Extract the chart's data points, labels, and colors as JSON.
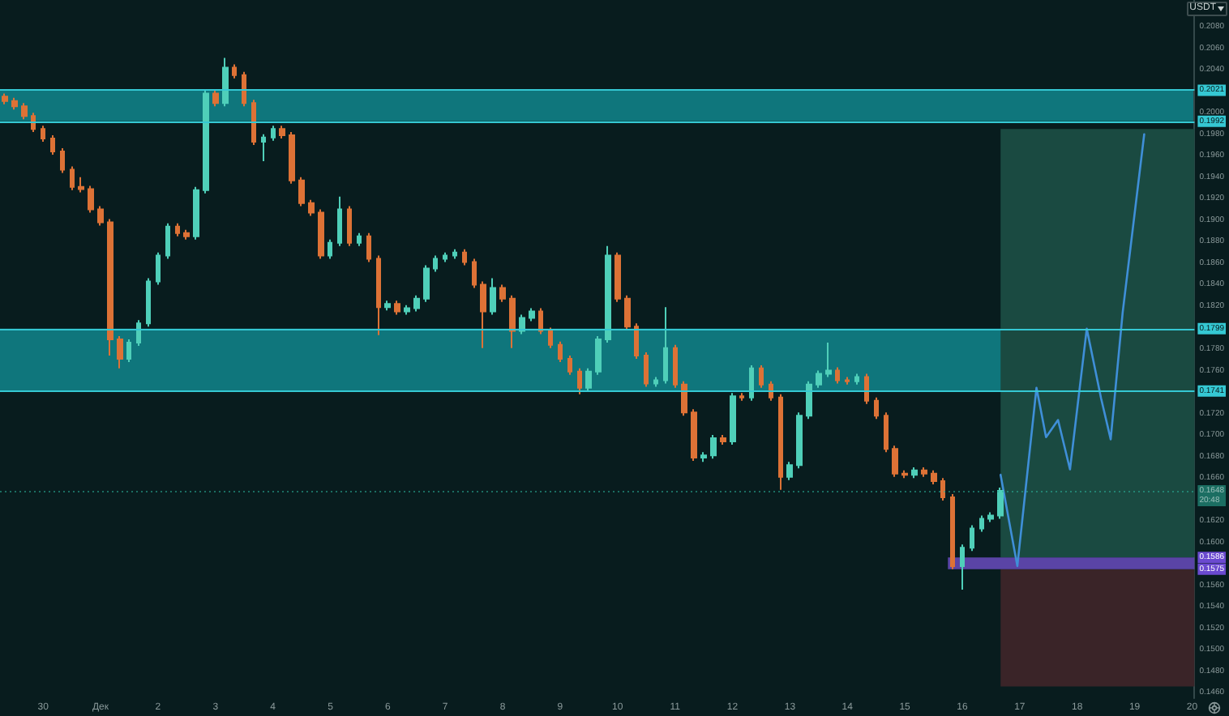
{
  "chart_data": {
    "type": "candlestick",
    "ylabel": "USDT",
    "xlim": [
      "--11-29T06:00",
      "--12-20T01:00"
    ],
    "xticks": [
      {
        "value": "--11-30",
        "label": "30"
      },
      {
        "value": "--12-01",
        "label": "Дек"
      },
      {
        "value": "--12-02",
        "label": "2"
      },
      {
        "value": "--12-03",
        "label": "3"
      },
      {
        "value": "--12-04",
        "label": "4"
      },
      {
        "value": "--12-05",
        "label": "5"
      },
      {
        "value": "--12-06",
        "label": "6"
      },
      {
        "value": "--12-07",
        "label": "7"
      },
      {
        "value": "--12-08",
        "label": "8"
      },
      {
        "value": "--12-09",
        "label": "9"
      },
      {
        "value": "--12-10",
        "label": "10"
      },
      {
        "value": "--12-11",
        "label": "11"
      },
      {
        "value": "--12-12",
        "label": "12"
      },
      {
        "value": "--12-13",
        "label": "13"
      },
      {
        "value": "--12-14",
        "label": "14"
      },
      {
        "value": "--12-15",
        "label": "15"
      },
      {
        "value": "--12-16",
        "label": "16"
      },
      {
        "value": "--12-17",
        "label": "17"
      },
      {
        "value": "--12-18",
        "label": "18"
      },
      {
        "value": "--12-19",
        "label": "19"
      },
      {
        "value": "--12-20",
        "label": "20"
      }
    ],
    "ylim": [
      0.1455,
      0.2105
    ],
    "yticks": [
      {
        "value": 0.208,
        "label": "0.2080"
      },
      {
        "value": 0.206,
        "label": "0.2060"
      },
      {
        "value": 0.204,
        "label": "0.2040"
      },
      {
        "value": 0.2,
        "label": "0.2000"
      },
      {
        "value": 0.198,
        "label": "0.1980"
      },
      {
        "value": 0.196,
        "label": "0.1960"
      },
      {
        "value": 0.194,
        "label": "0.1940"
      },
      {
        "value": 0.192,
        "label": "0.1920"
      },
      {
        "value": 0.19,
        "label": "0.1900"
      },
      {
        "value": 0.188,
        "label": "0.1880"
      },
      {
        "value": 0.186,
        "label": "0.1860"
      },
      {
        "value": 0.184,
        "label": "0.1840"
      },
      {
        "value": 0.182,
        "label": "0.1820"
      },
      {
        "value": 0.178,
        "label": "0.1780"
      },
      {
        "value": 0.176,
        "label": "0.1760"
      },
      {
        "value": 0.172,
        "label": "0.1720"
      },
      {
        "value": 0.17,
        "label": "0.1700"
      },
      {
        "value": 0.168,
        "label": "0.1680"
      },
      {
        "value": 0.166,
        "label": "0.1660"
      },
      {
        "value": 0.162,
        "label": "0.1620"
      },
      {
        "value": 0.16,
        "label": "0.1600"
      },
      {
        "value": 0.156,
        "label": "0.1560"
      },
      {
        "value": 0.154,
        "label": "0.1540"
      },
      {
        "value": 0.152,
        "label": "0.1520"
      },
      {
        "value": 0.15,
        "label": "0.1500"
      },
      {
        "value": 0.148,
        "label": "0.1480"
      },
      {
        "value": 0.146,
        "label": "0.1460"
      }
    ],
    "bands": [
      {
        "axis": "y",
        "from": 0.1992,
        "to": 0.2021,
        "color": "#0f767c"
      },
      {
        "axis": "y",
        "from": 0.1741,
        "to": 0.1799,
        "color": "#0f767c"
      }
    ],
    "ref_lines": [
      {
        "axis": "y",
        "value": 0.2021,
        "label": "0.2021",
        "color": "#35c8d3"
      },
      {
        "axis": "y",
        "value": 0.1992,
        "label": "0.1992",
        "color": "#35c8d3"
      },
      {
        "axis": "y",
        "value": 0.1799,
        "label": "0.1799",
        "color": "#35c8d3"
      },
      {
        "axis": "y",
        "value": 0.1741,
        "label": "0.1741",
        "color": "#35c8d3"
      },
      {
        "axis": "y",
        "value": 0.1648,
        "label": "0.1648\n20:48",
        "color": "#2bb39a",
        "line_style": "dotted"
      }
    ],
    "annotations": [
      {
        "text": "0.1586",
        "y": 0.1586
      },
      {
        "text": "0.1575",
        "y": 0.1575
      }
    ],
    "series": [
      {
        "x": [
          "--11-29T08:00",
          "--11-29T12:00",
          "--11-29T16:00",
          "--11-29T20:00",
          "--11-30T00:00",
          "--11-30T04:00",
          "--11-30T08:00",
          "--11-30T12:00",
          "--11-30T16:00",
          "--11-30T20:00",
          "--12-01T00:00",
          "--12-01T04:00",
          "--12-01T08:00",
          "--12-01T12:00",
          "--12-01T16:00",
          "--12-01T20:00",
          "--12-02T00:00",
          "--12-02T04:00",
          "--12-02T08:00",
          "--12-02T12:00",
          "--12-02T16:00",
          "--12-02T20:00",
          "--12-03T00:00",
          "--12-03T04:00",
          "--12-03T08:00",
          "--12-03T12:00",
          "--12-03T16:00",
          "--12-03T20:00",
          "--12-04T00:00",
          "--12-04T04:00",
          "--12-04T08:00",
          "--12-04T12:00",
          "--12-04T16:00",
          "--12-04T20:00",
          "--12-05T00:00",
          "--12-05T04:00",
          "--12-05T08:00",
          "--12-05T12:00",
          "--12-05T16:00",
          "--12-05T20:00",
          "--12-06T00:00",
          "--12-06T04:00",
          "--12-06T08:00",
          "--12-06T12:00",
          "--12-06T16:00",
          "--12-06T20:00",
          "--12-07T00:00",
          "--12-07T04:00",
          "--12-07T08:00",
          "--12-07T12:00",
          "--12-07T16:00",
          "--12-07T20:00",
          "--12-08T00:00",
          "--12-08T04:00",
          "--12-08T08:00",
          "--12-08T12:00",
          "--12-08T16:00",
          "--12-08T20:00",
          "--12-09T00:00",
          "--12-09T04:00",
          "--12-09T08:00",
          "--12-09T12:00",
          "--12-09T16:00",
          "--12-09T20:00",
          "--12-10T00:00",
          "--12-10T04:00",
          "--12-10T08:00",
          "--12-10T12:00",
          "--12-10T16:00",
          "--12-10T20:00",
          "--12-11T00:00",
          "--12-11T04:00",
          "--12-11T08:00",
          "--12-11T12:00",
          "--12-11T16:00",
          "--12-11T20:00",
          "--12-12T00:00",
          "--12-12T04:00",
          "--12-12T08:00",
          "--12-12T12:00",
          "--12-12T16:00",
          "--12-12T20:00",
          "--12-13T00:00",
          "--12-13T04:00",
          "--12-13T08:00",
          "--12-13T12:00",
          "--12-13T16:00",
          "--12-13T20:00",
          "--12-14T00:00",
          "--12-14T04:00",
          "--12-14T08:00",
          "--12-14T12:00",
          "--12-14T16:00",
          "--12-14T20:00",
          "--12-15T00:00",
          "--12-15T04:00",
          "--12-15T08:00",
          "--12-15T12:00",
          "--12-15T16:00",
          "--12-15T20:00",
          "--12-16T00:00",
          "--12-16T04:00",
          "--12-16T08:00",
          "--12-16T12:00",
          "--12-16T16:00"
        ],
        "ohlc": [
          [
            0.2015,
            0.2018,
            0.2008,
            0.2011
          ],
          [
            0.2011,
            0.2014,
            0.2003,
            0.2006
          ],
          [
            0.2006,
            0.2009,
            0.1994,
            0.1997
          ],
          [
            0.1997,
            0.2,
            0.1982,
            0.1985
          ],
          [
            0.1985,
            0.1988,
            0.1973,
            0.1976
          ],
          [
            0.1976,
            0.1979,
            0.1961,
            0.1964
          ],
          [
            0.1964,
            0.1967,
            0.1944,
            0.1947
          ],
          [
            0.1947,
            0.195,
            0.1928,
            0.1931
          ],
          [
            0.1931,
            0.194,
            0.1926,
            0.1929
          ],
          [
            0.1929,
            0.1932,
            0.1907,
            0.191
          ],
          [
            0.191,
            0.1913,
            0.1895,
            0.1898
          ],
          [
            0.1898,
            0.1901,
            0.1774,
            0.1789
          ],
          [
            0.1789,
            0.1792,
            0.1762,
            0.1771
          ],
          [
            0.1771,
            0.1789,
            0.1768,
            0.1786
          ],
          [
            0.1786,
            0.1807,
            0.1783,
            0.1804
          ],
          [
            0.1804,
            0.1846,
            0.1801,
            0.1843
          ],
          [
            0.1843,
            0.187,
            0.184,
            0.1867
          ],
          [
            0.1867,
            0.1897,
            0.1864,
            0.1894
          ],
          [
            0.1894,
            0.1897,
            0.1885,
            0.1888
          ],
          [
            0.1888,
            0.1891,
            0.1882,
            0.1885
          ],
          [
            0.1885,
            0.1931,
            0.1882,
            0.1928
          ],
          [
            0.1928,
            0.2021,
            0.1925,
            0.2018
          ],
          [
            0.2018,
            0.2021,
            0.2006,
            0.2009
          ],
          [
            0.2009,
            0.2051,
            0.2006,
            0.2042
          ],
          [
            0.2042,
            0.2045,
            0.2032,
            0.2035
          ],
          [
            0.2035,
            0.2038,
            0.2006,
            0.2009
          ],
          [
            0.2009,
            0.2012,
            0.197,
            0.1973
          ],
          [
            0.1973,
            0.198,
            0.1955,
            0.1977
          ],
          [
            0.1977,
            0.1988,
            0.1974,
            0.1985
          ],
          [
            0.1985,
            0.1988,
            0.1976,
            0.1979
          ],
          [
            0.1979,
            0.1982,
            0.1934,
            0.1937
          ],
          [
            0.1937,
            0.194,
            0.1913,
            0.1916
          ],
          [
            0.1916,
            0.1919,
            0.1904,
            0.1907
          ],
          [
            0.1907,
            0.191,
            0.1864,
            0.1867
          ],
          [
            0.1867,
            0.1882,
            0.1864,
            0.1879
          ],
          [
            0.1879,
            0.1922,
            0.1876,
            0.191
          ],
          [
            0.191,
            0.1913,
            0.1876,
            0.1879
          ],
          [
            0.1879,
            0.1888,
            0.1876,
            0.1885
          ],
          [
            0.1885,
            0.1888,
            0.1861,
            0.1864
          ],
          [
            0.1864,
            0.1867,
            0.1793,
            0.1819
          ],
          [
            0.1819,
            0.1825,
            0.1816,
            0.1822
          ],
          [
            0.1822,
            0.1825,
            0.1812,
            0.1815
          ],
          [
            0.1815,
            0.1821,
            0.1812,
            0.1818
          ],
          [
            0.1818,
            0.183,
            0.1815,
            0.1827
          ],
          [
            0.1827,
            0.1858,
            0.1824,
            0.1855
          ],
          [
            0.1855,
            0.1867,
            0.1852,
            0.1864
          ],
          [
            0.1864,
            0.187,
            0.1861,
            0.1867
          ],
          [
            0.1867,
            0.1873,
            0.1864,
            0.187
          ],
          [
            0.187,
            0.1873,
            0.1858,
            0.1861
          ],
          [
            0.1861,
            0.1864,
            0.1837,
            0.184
          ],
          [
            0.184,
            0.1843,
            0.1781,
            0.1815
          ],
          [
            0.1815,
            0.1846,
            0.1812,
            0.1837
          ],
          [
            0.1837,
            0.184,
            0.1824,
            0.1827
          ],
          [
            0.1827,
            0.183,
            0.1781,
            0.1797
          ],
          [
            0.1797,
            0.1812,
            0.1794,
            0.1809
          ],
          [
            0.1809,
            0.1818,
            0.1806,
            0.1815
          ],
          [
            0.1815,
            0.1818,
            0.1794,
            0.1797
          ],
          [
            0.1797,
            0.18,
            0.1781,
            0.1784
          ],
          [
            0.1784,
            0.1787,
            0.1768,
            0.1771
          ],
          [
            0.1771,
            0.1774,
            0.1756,
            0.1759
          ],
          [
            0.1759,
            0.1762,
            0.1738,
            0.1744
          ],
          [
            0.1744,
            0.1762,
            0.1741,
            0.1759
          ],
          [
            0.1759,
            0.1792,
            0.1756,
            0.1789
          ],
          [
            0.1789,
            0.1876,
            0.1786,
            0.1867
          ],
          [
            0.1867,
            0.187,
            0.1824,
            0.1827
          ],
          [
            0.1827,
            0.183,
            0.1798,
            0.1801
          ],
          [
            0.1801,
            0.1804,
            0.1771,
            0.1774
          ],
          [
            0.1774,
            0.1777,
            0.1745,
            0.1748
          ],
          [
            0.1748,
            0.1754,
            0.1745,
            0.1751
          ],
          [
            0.1751,
            0.1819,
            0.1748,
            0.1781
          ],
          [
            0.1781,
            0.1784,
            0.1744,
            0.1747
          ],
          [
            0.1747,
            0.175,
            0.1718,
            0.1721
          ],
          [
            0.1721,
            0.1724,
            0.1676,
            0.1679
          ],
          [
            0.1679,
            0.1684,
            0.1675,
            0.1681
          ],
          [
            0.1681,
            0.17,
            0.1678,
            0.1697
          ],
          [
            0.1697,
            0.17,
            0.1691,
            0.1694
          ],
          [
            0.1694,
            0.1739,
            0.1691,
            0.1736
          ],
          [
            0.1736,
            0.1739,
            0.1732,
            0.1735
          ],
          [
            0.1735,
            0.1765,
            0.1732,
            0.1762
          ],
          [
            0.1762,
            0.1765,
            0.1744,
            0.1747
          ],
          [
            0.1747,
            0.175,
            0.1732,
            0.1735
          ],
          [
            0.1735,
            0.1738,
            0.1649,
            0.1661
          ],
          [
            0.1661,
            0.1675,
            0.1658,
            0.1672
          ],
          [
            0.1672,
            0.1721,
            0.1669,
            0.1718
          ],
          [
            0.1718,
            0.175,
            0.1715,
            0.1747
          ],
          [
            0.1747,
            0.176,
            0.1744,
            0.1757
          ],
          [
            0.1757,
            0.1786,
            0.1754,
            0.176
          ],
          [
            0.176,
            0.1763,
            0.1748,
            0.1751
          ],
          [
            0.1751,
            0.1754,
            0.1747,
            0.175
          ],
          [
            0.175,
            0.1757,
            0.1747,
            0.1754
          ],
          [
            0.1754,
            0.1757,
            0.1729,
            0.1732
          ],
          [
            0.1732,
            0.1735,
            0.1715,
            0.1718
          ],
          [
            0.1718,
            0.1721,
            0.1684,
            0.1687
          ],
          [
            0.1687,
            0.169,
            0.1661,
            0.1664
          ],
          [
            0.1664,
            0.1667,
            0.166,
            0.1663
          ],
          [
            0.1663,
            0.167,
            0.166,
            0.1667
          ],
          [
            0.1667,
            0.167,
            0.1661,
            0.1664
          ],
          [
            0.1664,
            0.1667,
            0.1654,
            0.1657
          ],
          [
            0.1657,
            0.166,
            0.1639,
            0.1642
          ],
          [
            0.1642,
            0.1645,
            0.1575,
            0.1578
          ],
          [
            0.1578,
            0.1598,
            0.1556,
            0.1595
          ],
          [
            0.1595,
            0.1616,
            0.1592,
            0.1613
          ],
          [
            0.1613,
            0.1625,
            0.161,
            0.1622
          ],
          [
            0.1622,
            0.1628,
            0.1619,
            0.1625
          ],
          [
            0.1625,
            0.1651,
            0.1622,
            0.1648
          ]
        ],
        "colors": [
          "#dd7236",
          "#dd7236",
          "#dd7236",
          "#dd7236",
          "#dd7236",
          "#dd7236",
          "#dd7236",
          "#dd7236",
          "#dd7236",
          "#dd7236",
          "#dd7236",
          "#dd7236",
          "#dd7236",
          "#4fcfb9",
          "#4fcfb9",
          "#4fcfb9",
          "#4fcfb9",
          "#4fcfb9",
          "#dd7236",
          "#dd7236",
          "#4fcfb9",
          "#4fcfb9",
          "#dd7236",
          "#4fcfb9",
          "#dd7236",
          "#dd7236",
          "#dd7236",
          "#4fcfb9",
          "#4fcfb9",
          "#dd7236",
          "#dd7236",
          "#dd7236",
          "#dd7236",
          "#dd7236",
          "#4fcfb9",
          "#4fcfb9",
          "#dd7236",
          "#4fcfb9",
          "#dd7236",
          "#dd7236",
          "#4fcfb9",
          "#dd7236",
          "#4fcfb9",
          "#4fcfb9",
          "#4fcfb9",
          "#4fcfb9",
          "#4fcfb9",
          "#4fcfb9",
          "#dd7236",
          "#dd7236",
          "#dd7236",
          "#4fcfb9",
          "#dd7236",
          "#dd7236",
          "#4fcfb9",
          "#4fcfb9",
          "#dd7236",
          "#dd7236",
          "#dd7236",
          "#dd7236",
          "#dd7236",
          "#4fcfb9",
          "#4fcfb9",
          "#4fcfb9",
          "#dd7236",
          "#dd7236",
          "#dd7236",
          "#dd7236",
          "#4fcfb9",
          "#4fcfb9",
          "#dd7236",
          "#dd7236",
          "#dd7236",
          "#4fcfb9",
          "#4fcfb9",
          "#dd7236",
          "#4fcfb9",
          "#dd7236",
          "#4fcfb9",
          "#dd7236",
          "#dd7236",
          "#dd7236",
          "#4fcfb9",
          "#4fcfb9",
          "#4fcfb9",
          "#4fcfb9",
          "#4fcfb9",
          "#dd7236",
          "#dd7236",
          "#4fcfb9",
          "#dd7236",
          "#dd7236",
          "#dd7236",
          "#dd7236",
          "#dd7236",
          "#4fcfb9",
          "#dd7236",
          "#dd7236",
          "#dd7236",
          "#dd7236",
          "#4fcfb9",
          "#4fcfb9",
          "#4fcfb9",
          "#4fcfb9",
          "#4fcfb9"
        ]
      },
      {
        "type": "line",
        "color": "#3f8fd8",
        "x": [
          "--12-16T16:00",
          "--12-16T23:00",
          "--12-17T07:00",
          "--12-17T11:00",
          "--12-17T16:00",
          "--12-17T21:00",
          "--12-18T04:00",
          "--12-18T10:00",
          "--12-18T14:00",
          "--12-18T19:00",
          "--12-19T04:00"
        ],
        "values": [
          0.1663,
          0.1578,
          0.1744,
          0.1698,
          0.1714,
          0.1668,
          0.1799,
          0.1734,
          0.1696,
          0.1814,
          0.198
        ]
      },
      {
        "type": "area",
        "color": "#1a4a41",
        "x": [
          "--12-16T16:00",
          "--12-20T01:00"
        ],
        "values": [
          null,
          null
        ],
        "lower": [
          0.1586,
          0.1586
        ],
        "upper": [
          0.1985,
          0.1985
        ]
      },
      {
        "type": "area",
        "color": "#3a2428",
        "x": [
          "--12-16T16:00",
          "--12-20T01:00"
        ],
        "values": [
          null,
          null
        ],
        "lower": [
          0.1466,
          0.1466
        ],
        "upper": [
          0.1575,
          0.1575
        ]
      },
      {
        "type": "area",
        "color": "#5a44a6",
        "x": [
          "--12-15T18:00",
          "--12-20T01:00"
        ],
        "values": [
          null,
          null
        ],
        "lower": [
          0.1575,
          0.1575
        ],
        "upper": [
          0.1586,
          0.1586
        ]
      }
    ]
  }
}
